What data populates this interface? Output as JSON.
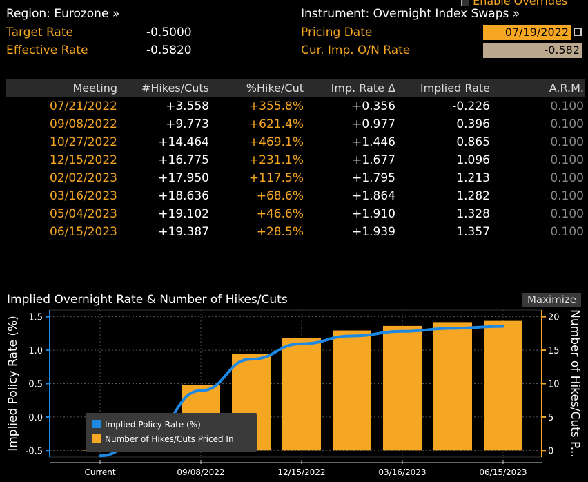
{
  "top": {
    "enable_overrides": "Enable Overrides",
    "region": "Region: Eurozone »",
    "instrument": "Instrument: Overnight Index Swaps »",
    "target_rate_label": "Target Rate",
    "target_rate_value": "-0.5000",
    "effective_rate_label": "Effective Rate",
    "effective_rate_value": "-0.5820",
    "pricing_date_label": "Pricing Date",
    "pricing_date_value": "07/19/2022",
    "cur_imp_label": "Cur. Imp. O/N Rate",
    "cur_imp_value": "-0.582"
  },
  "table": {
    "headers": [
      "Meeting",
      "#Hikes/Cuts",
      "%Hike/Cut",
      "Imp. Rate Δ",
      "Implied Rate",
      "A.R.M."
    ],
    "rows": [
      [
        "07/21/2022",
        "+3.558",
        "+355.8%",
        "+0.356",
        "-0.226",
        "0.100"
      ],
      [
        "09/08/2022",
        "+9.773",
        "+621.4%",
        "+0.977",
        "0.396",
        "0.100"
      ],
      [
        "10/27/2022",
        "+14.464",
        "+469.1%",
        "+1.446",
        "0.865",
        "0.100"
      ],
      [
        "12/15/2022",
        "+16.775",
        "+231.1%",
        "+1.677",
        "1.096",
        "0.100"
      ],
      [
        "02/02/2023",
        "+17.950",
        "+117.5%",
        "+1.795",
        "1.213",
        "0.100"
      ],
      [
        "03/16/2023",
        "+18.636",
        "+68.6%",
        "+1.864",
        "1.282",
        "0.100"
      ],
      [
        "05/04/2023",
        "+19.102",
        "+46.6%",
        "+1.910",
        "1.328",
        "0.100"
      ],
      [
        "06/15/2023",
        "+19.387",
        "+28.5%",
        "+1.939",
        "1.357",
        "0.100"
      ]
    ]
  },
  "maximize_label": "Maximize",
  "colors": {
    "orange": "#f5a623",
    "blue": "#1e88e5",
    "background": "#000000"
  },
  "chart_data": {
    "type": "bar",
    "title": "Implied Overnight Rate & Number of Hikes/Cuts",
    "categories": [
      "Current",
      "07/21/2022",
      "09/08/2022",
      "10/27/2022",
      "12/15/2022",
      "02/02/2023",
      "03/16/2023",
      "05/04/2023",
      "06/15/2023"
    ],
    "x_tick_labels": [
      "Current",
      "09/08/2022",
      "12/15/2022",
      "03/16/2023",
      "06/15/2023"
    ],
    "ylabel": "Implied Policy Rate (%)",
    "y2label": "Number of Hikes/Cuts P...",
    "ylim": [
      -0.6,
      1.6
    ],
    "y2lim": [
      -1,
      21
    ],
    "y_ticks": [
      "-0.5",
      "0.0",
      "0.5",
      "1.0",
      "1.5"
    ],
    "y2_ticks": [
      "0",
      "5",
      "10",
      "15",
      "20"
    ],
    "grid": true,
    "legend_position": "bottom-left",
    "series": [
      {
        "name": "Implied Policy Rate (%)",
        "type": "line",
        "axis": "left",
        "values": [
          -0.582,
          -0.226,
          0.396,
          0.865,
          1.096,
          1.213,
          1.282,
          1.328,
          1.357
        ]
      },
      {
        "name": "Number of Hikes/Cuts Priced In",
        "type": "bar",
        "axis": "right",
        "values": [
          0,
          3.558,
          9.773,
          14.464,
          16.775,
          17.95,
          18.636,
          19.102,
          19.387
        ]
      }
    ]
  }
}
